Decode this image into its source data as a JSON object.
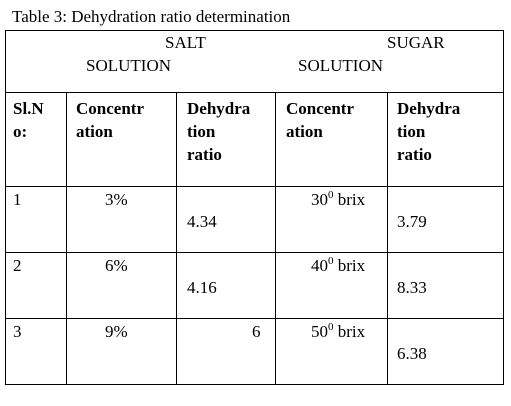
{
  "caption": "Table 3: Dehydration ratio determination",
  "group_headers": {
    "salt_line1": "SALT",
    "salt_line2": "SOLUTION",
    "sugar_line1": "SUGAR",
    "sugar_line2": "SOLUTION"
  },
  "column_headers": {
    "slno_l1": "Sl.N",
    "slno_l2": "o:",
    "conc1_l1": "Concentr",
    "conc1_l2": "ation",
    "dehy1_l1": "Dehydra",
    "dehy1_l2": "tion",
    "dehy1_l3": "ratio",
    "conc2_l1": "Concentr",
    "conc2_l2": "ation",
    "dehy2_l1": "Dehydra",
    "dehy2_l2": "tion",
    "dehy2_l3": "ratio"
  },
  "rows": [
    {
      "sl": "1",
      "salt_conc": "3%",
      "salt_ratio": "4.34",
      "sugar_num": "30",
      "sugar_sup": "0",
      "sugar_unit": "brix",
      "sugar_ratio": "3.79"
    },
    {
      "sl": "2",
      "salt_conc": "6%",
      "salt_ratio": "4.16",
      "sugar_num": "40",
      "sugar_sup": "0",
      "sugar_unit": "brix",
      "sugar_ratio": "8.33"
    },
    {
      "sl": "3",
      "salt_conc": "9%",
      "salt_ratio": "6",
      "sugar_num": "50",
      "sugar_sup": "0",
      "sugar_unit": "brix",
      "sugar_ratio": "6.38"
    }
  ]
}
